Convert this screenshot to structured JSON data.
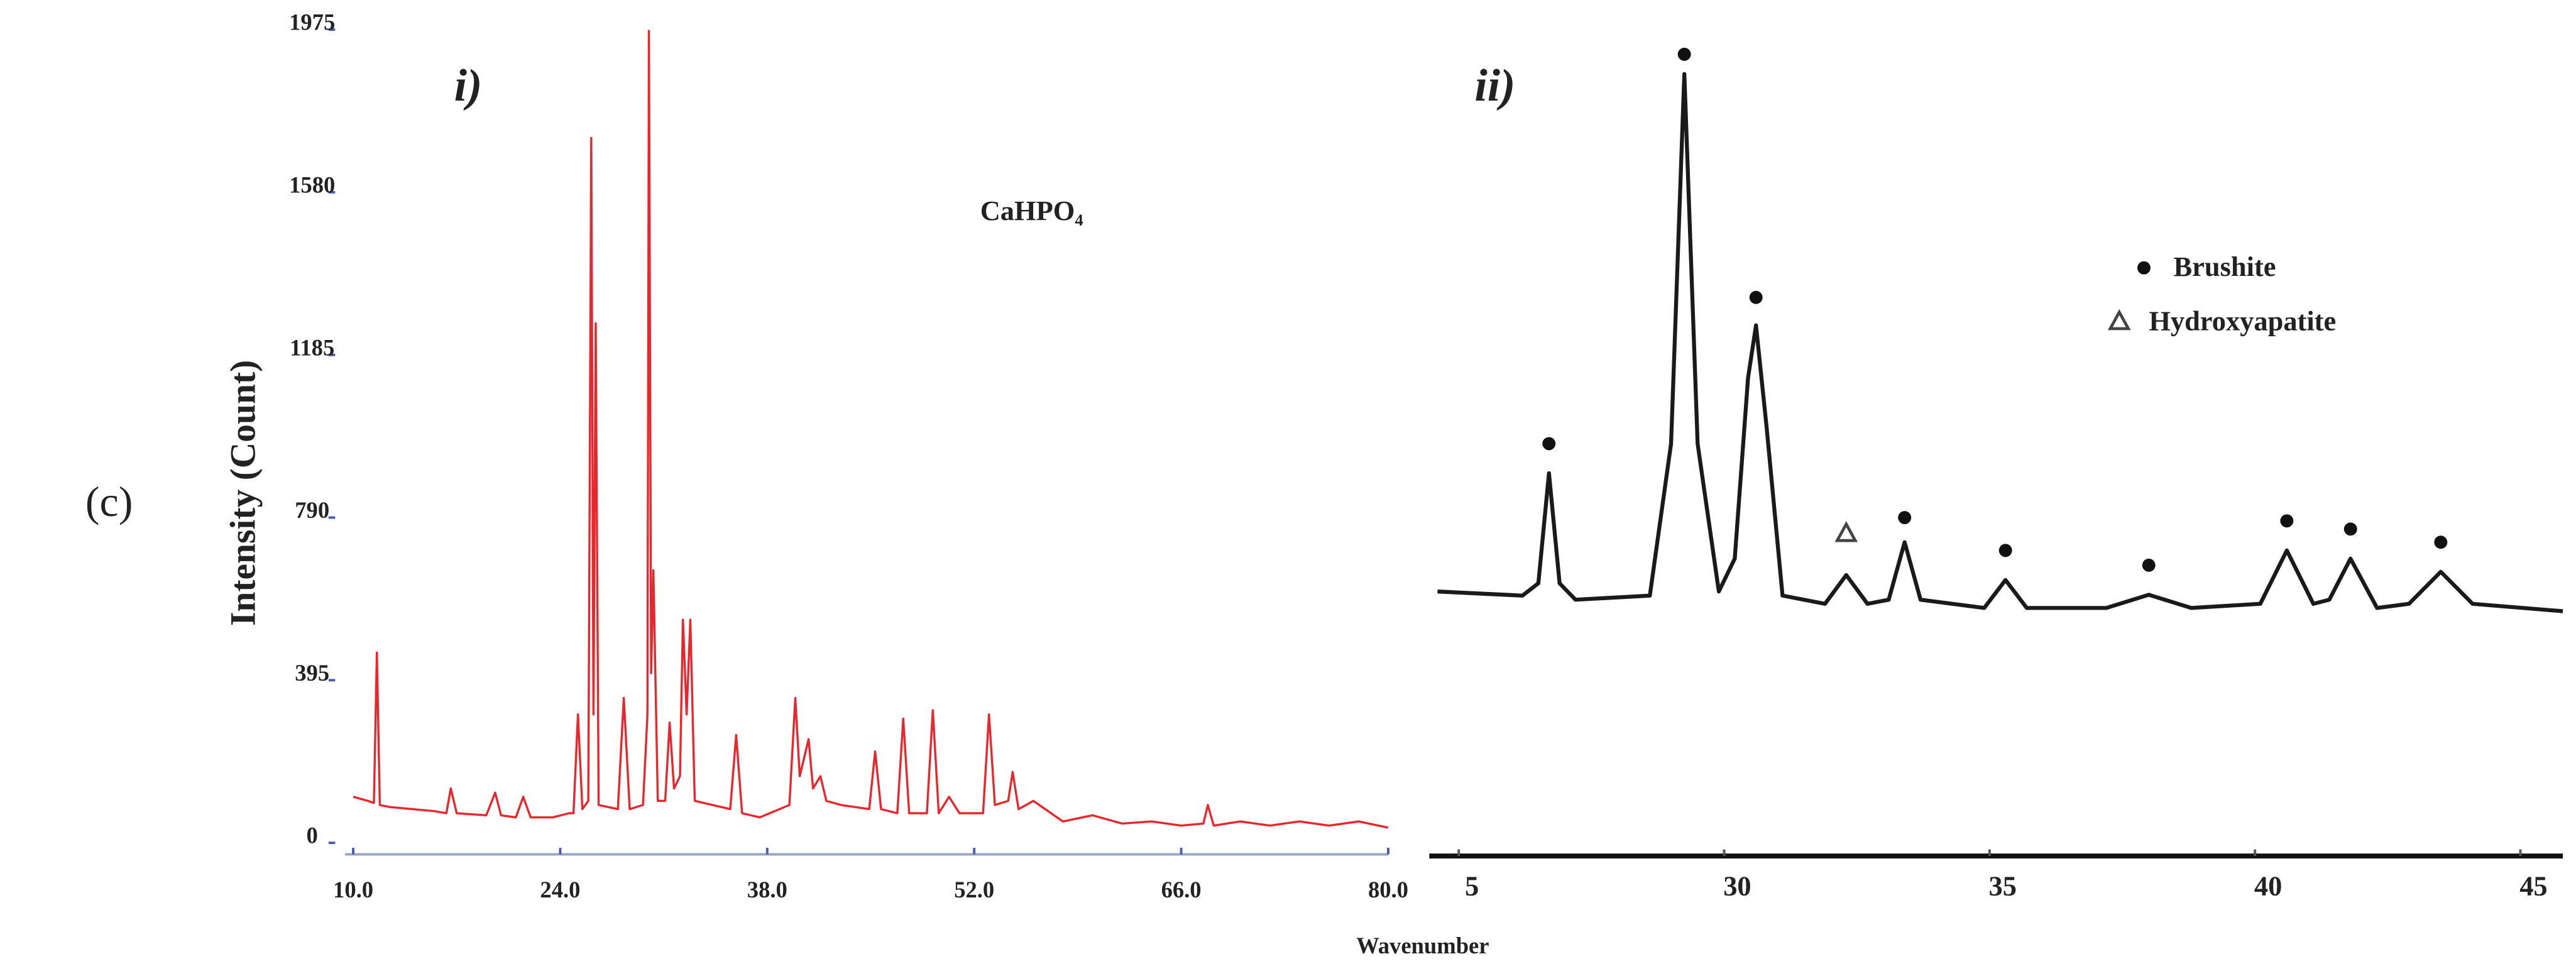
{
  "label": "(c)",
  "chart_data": [
    {
      "type": "line",
      "title": "i)",
      "annotation": "CaHPO₄",
      "ylabel": "Intensity (Count)",
      "xlabel": "Wavenumber",
      "color": "#e8262b",
      "xlim": [
        10,
        80
      ],
      "ylim": [
        0,
        1975
      ],
      "xticks": [
        {
          "value": 10,
          "label": "10.0"
        },
        {
          "value": 24,
          "label": "24.0"
        },
        {
          "value": 38,
          "label": "38.0"
        },
        {
          "value": 52,
          "label": "52.0"
        },
        {
          "value": 66,
          "label": "66.0"
        },
        {
          "value": 80,
          "label": "80.0"
        }
      ],
      "yticks": [
        0,
        395,
        790,
        1185,
        1580,
        1975
      ],
      "x": [
        10,
        10.5,
        11,
        11.4,
        11.6,
        11.8,
        12.5,
        14,
        15.5,
        16.3,
        16.6,
        17,
        19,
        19.6,
        20,
        21,
        21.5,
        22,
        23.5,
        24.6,
        24.9,
        25.2,
        25.5,
        25.9,
        26.1,
        26.25,
        26.4,
        26.6,
        27.9,
        28.3,
        28.7,
        29.6,
        29.9,
        30,
        30.15,
        30.3,
        30.6,
        31.1,
        31.4,
        31.7,
        32.1,
        32.3,
        32.55,
        32.8,
        33.1,
        35.5,
        35.9,
        36.3,
        37.5,
        39.5,
        39.9,
        40.2,
        40.8,
        41.1,
        41.6,
        42,
        43,
        44.9,
        45.3,
        45.7,
        46.8,
        47.2,
        47.6,
        48.8,
        49.2,
        49.6,
        50.3,
        51,
        52.6,
        53,
        53.4,
        54.3,
        54.6,
        55,
        56,
        58,
        60,
        62,
        64,
        66,
        67.5,
        67.8,
        68.2,
        70,
        72,
        74,
        76,
        78,
        80
      ],
      "values": [
        100,
        95,
        90,
        85,
        450,
        80,
        75,
        70,
        65,
        60,
        120,
        60,
        55,
        110,
        55,
        50,
        100,
        50,
        50,
        60,
        60,
        300,
        70,
        90,
        1700,
        300,
        1250,
        80,
        70,
        340,
        70,
        80,
        300,
        1960,
        400,
        650,
        90,
        90,
        280,
        120,
        150,
        530,
        300,
        530,
        90,
        70,
        250,
        60,
        50,
        80,
        340,
        150,
        240,
        120,
        150,
        90,
        80,
        70,
        210,
        70,
        60,
        290,
        60,
        60,
        310,
        60,
        100,
        60,
        60,
        300,
        80,
        90,
        160,
        70,
        90,
        40,
        55,
        35,
        40,
        30,
        35,
        80,
        30,
        40,
        30,
        40,
        30,
        40,
        25
      ]
    },
    {
      "type": "line",
      "title": "ii)",
      "color": "#1a1a1a",
      "xlim": [
        24.6,
        45.8
      ],
      "ylim": [
        0,
        100
      ],
      "xticks": [
        {
          "value": 25,
          "label": "5"
        },
        30,
        35,
        40,
        45
      ],
      "x": [
        24.6,
        26.2,
        26.5,
        26.7,
        26.9,
        27.2,
        28.6,
        29,
        29.25,
        29.5,
        29.9,
        30.2,
        30.45,
        30.6,
        30.8,
        31.1,
        31.9,
        32.3,
        32.7,
        33.1,
        33.4,
        33.7,
        34.9,
        35.3,
        35.7,
        37.2,
        38,
        38.8,
        40.1,
        40.6,
        41.1,
        41.4,
        41.8,
        42.3,
        42.9,
        43.5,
        44.1,
        45.8
      ],
      "values": [
        32,
        31.5,
        33,
        46.4,
        33,
        31,
        31.5,
        50,
        95,
        50,
        32,
        36,
        58,
        64.4,
        52,
        31.5,
        30.5,
        34,
        30.5,
        31,
        38,
        31,
        30,
        33.4,
        30,
        30,
        31.6,
        30,
        30.5,
        37,
        30.5,
        31,
        36,
        30,
        30.5,
        34.4,
        30.5,
        29.6
      ],
      "series": [
        {
          "name": "Brushite",
          "symbol": "dot",
          "color": "#111",
          "x": [
            26.7,
            29.25,
            30.6,
            33.4,
            35.3,
            38,
            40.6,
            41.8,
            43.5
          ],
          "values": [
            50,
            97.4,
            67.8,
            41,
            37,
            35.2,
            40.6,
            39.6,
            38
          ]
        },
        {
          "name": "Hydroxyapatite",
          "symbol": "triangle",
          "color": "#444",
          "x": [
            32.3
          ],
          "values": [
            39
          ]
        }
      ]
    }
  ]
}
